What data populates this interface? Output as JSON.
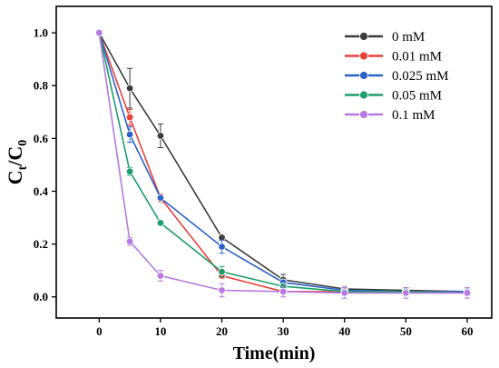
{
  "chart_data": {
    "type": "line",
    "xlabel": "Time(min)",
    "ylabel_main": "C",
    "ylabel_sub1": "t",
    "ylabel_slash": "/C",
    "ylabel_sub2": "0",
    "x": [
      0,
      5,
      10,
      20,
      30,
      40,
      50,
      60
    ],
    "xticks": [
      0,
      10,
      20,
      30,
      40,
      50,
      60
    ],
    "yticks": [
      0.0,
      0.2,
      0.4,
      0.6,
      0.8,
      1.0
    ],
    "xlim": [
      -7,
      64
    ],
    "ylim": [
      -0.08,
      1.1
    ],
    "legend_position": "top-right",
    "series": [
      {
        "name": "0 mM",
        "color": "#3c3c3c",
        "values": [
          1.0,
          0.79,
          0.61,
          0.225,
          0.065,
          0.03,
          0.025,
          0.02
        ],
        "errors": [
          0,
          0.075,
          0.045,
          0.01,
          0.02,
          0.01,
          0.01,
          0.008
        ]
      },
      {
        "name": "0.01 mM",
        "color": "#e8413a",
        "values": [
          1.0,
          0.68,
          0.375,
          0.08,
          0.02,
          0.02,
          0.02,
          0.02
        ],
        "errors": [
          0,
          0.03,
          0.015,
          0.01,
          0.005,
          0.005,
          0.005,
          0.005
        ]
      },
      {
        "name": "0.025 mM",
        "color": "#2c62c8",
        "values": [
          1.0,
          0.615,
          0.375,
          0.19,
          0.055,
          0.025,
          0.02,
          0.02
        ],
        "errors": [
          0,
          0.03,
          0.01,
          0.025,
          0.01,
          0.01,
          0.01,
          0.01
        ]
      },
      {
        "name": "0.05 mM",
        "color": "#1f9e6b",
        "values": [
          1.0,
          0.475,
          0.28,
          0.095,
          0.04,
          0.02,
          0.02,
          0.015
        ],
        "errors": [
          0,
          0.015,
          0.01,
          0.02,
          0.01,
          0.01,
          0.01,
          0.01
        ]
      },
      {
        "name": "0.1 mM",
        "color": "#b57be0",
        "values": [
          1.0,
          0.21,
          0.08,
          0.025,
          0.02,
          0.015,
          0.015,
          0.015
        ],
        "errors": [
          0,
          0.015,
          0.02,
          0.025,
          0.02,
          0.02,
          0.02,
          0.02
        ]
      }
    ]
  }
}
